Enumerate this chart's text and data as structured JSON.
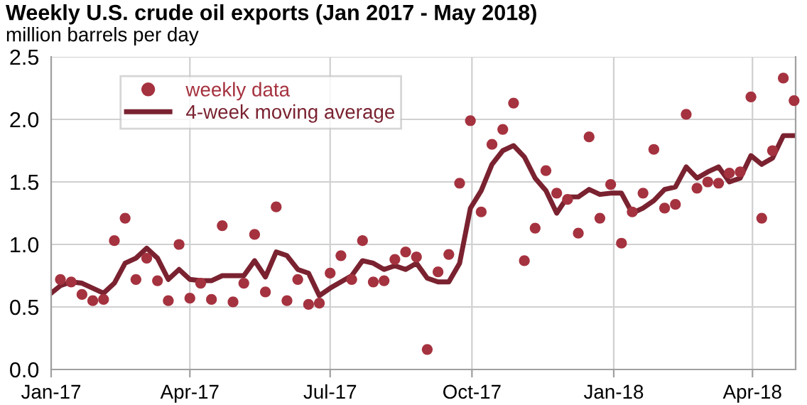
{
  "chart_data": {
    "type": "scatter",
    "title": "Weekly U.S. crude oil exports (Jan 2017 - May 2018)",
    "subtitle": "million barrels per day",
    "series": [
      {
        "name": "weekly data",
        "color": "#a5323f",
        "marker": "circle",
        "x": [
          "2017-01-07",
          "2017-01-14",
          "2017-01-21",
          "2017-01-28",
          "2017-02-04",
          "2017-02-11",
          "2017-02-18",
          "2017-02-25",
          "2017-03-04",
          "2017-03-11",
          "2017-03-18",
          "2017-03-25",
          "2017-04-01",
          "2017-04-08",
          "2017-04-15",
          "2017-04-22",
          "2017-04-29",
          "2017-05-06",
          "2017-05-13",
          "2017-05-20",
          "2017-05-27",
          "2017-06-03",
          "2017-06-10",
          "2017-06-17",
          "2017-06-24",
          "2017-07-01",
          "2017-07-08",
          "2017-07-15",
          "2017-07-22",
          "2017-07-29",
          "2017-08-05",
          "2017-08-12",
          "2017-08-19",
          "2017-08-26",
          "2017-09-02",
          "2017-09-09",
          "2017-09-16",
          "2017-09-23",
          "2017-09-30",
          "2017-10-07",
          "2017-10-14",
          "2017-10-21",
          "2017-10-28",
          "2017-11-04",
          "2017-11-11",
          "2017-11-18",
          "2017-11-25",
          "2017-12-02",
          "2017-12-09",
          "2017-12-16",
          "2017-12-23",
          "2017-12-30",
          "2018-01-06",
          "2018-01-13",
          "2018-01-20",
          "2018-01-27",
          "2018-02-03",
          "2018-02-10",
          "2018-02-17",
          "2018-02-24",
          "2018-03-03",
          "2018-03-10",
          "2018-03-17",
          "2018-03-24",
          "2018-03-31",
          "2018-04-07",
          "2018-04-14",
          "2018-04-21",
          "2018-04-28"
        ],
        "values": [
          0.72,
          0.7,
          0.6,
          0.55,
          0.56,
          1.03,
          1.21,
          0.72,
          0.89,
          0.71,
          0.55,
          1.0,
          0.57,
          0.69,
          0.56,
          1.15,
          0.54,
          0.69,
          1.08,
          0.62,
          1.3,
          0.55,
          0.72,
          0.52,
          0.53,
          0.77,
          0.91,
          0.72,
          1.03,
          0.7,
          0.71,
          0.88,
          0.94,
          0.9,
          0.16,
          0.78,
          0.92,
          1.49,
          1.99,
          1.26,
          1.8,
          1.92,
          2.13,
          0.87,
          1.13,
          1.59,
          1.41,
          1.36,
          1.09,
          1.86,
          1.21,
          1.48,
          1.01,
          1.26,
          1.41,
          1.76,
          1.29,
          1.32,
          2.04,
          1.45,
          1.5,
          1.49,
          1.57,
          1.58,
          2.18,
          1.21,
          1.75,
          2.33,
          2.15
        ]
      },
      {
        "name": "4-week moving average",
        "type": "line",
        "color": "#7a2230",
        "marker": "none",
        "line_style": "solid",
        "x": [
          "2017-01-01",
          "2017-01-07",
          "2017-01-14",
          "2017-01-21",
          "2017-01-28",
          "2017-02-04",
          "2017-02-11",
          "2017-02-18",
          "2017-02-25",
          "2017-03-04",
          "2017-03-11",
          "2017-03-18",
          "2017-03-25",
          "2017-04-01",
          "2017-04-08",
          "2017-04-15",
          "2017-04-22",
          "2017-04-29",
          "2017-05-06",
          "2017-05-13",
          "2017-05-20",
          "2017-05-27",
          "2017-06-03",
          "2017-06-10",
          "2017-06-17",
          "2017-06-24",
          "2017-07-01",
          "2017-07-08",
          "2017-07-15",
          "2017-07-22",
          "2017-07-29",
          "2017-08-05",
          "2017-08-12",
          "2017-08-19",
          "2017-08-26",
          "2017-09-02",
          "2017-09-09",
          "2017-09-16",
          "2017-09-23",
          "2017-09-30",
          "2017-10-07",
          "2017-10-14",
          "2017-10-21",
          "2017-10-28",
          "2017-11-04",
          "2017-11-11",
          "2017-11-18",
          "2017-11-25",
          "2017-12-02",
          "2017-12-09",
          "2017-12-16",
          "2017-12-23",
          "2017-12-30",
          "2018-01-06",
          "2018-01-13",
          "2018-01-20",
          "2018-01-27",
          "2018-02-03",
          "2018-02-10",
          "2018-02-17",
          "2018-02-24",
          "2018-03-03",
          "2018-03-10",
          "2018-03-17",
          "2018-03-24",
          "2018-03-31",
          "2018-04-07",
          "2018-04-14",
          "2018-04-21",
          "2018-04-28"
        ],
        "values": [
          0.61,
          0.67,
          0.7,
          0.69,
          0.65,
          0.61,
          0.69,
          0.85,
          0.89,
          0.97,
          0.89,
          0.72,
          0.8,
          0.72,
          0.71,
          0.71,
          0.75,
          0.75,
          0.75,
          0.87,
          0.74,
          0.94,
          0.91,
          0.8,
          0.77,
          0.59,
          0.65,
          0.7,
          0.75,
          0.87,
          0.85,
          0.8,
          0.83,
          0.8,
          0.85,
          0.73,
          0.7,
          0.7,
          0.85,
          1.29,
          1.43,
          1.64,
          1.75,
          1.79,
          1.7,
          1.53,
          1.43,
          1.25,
          1.38,
          1.38,
          1.44,
          1.4,
          1.41,
          1.41,
          1.25,
          1.29,
          1.35,
          1.44,
          1.46,
          1.62,
          1.53,
          1.58,
          1.62,
          1.5,
          1.53,
          1.71,
          1.64,
          1.69,
          1.87,
          1.87
        ]
      }
    ],
    "xlim": [
      "2017-01-01",
      "2018-04-29"
    ],
    "xticks": [
      {
        "value": "2017-01-01",
        "label": "Jan-17"
      },
      {
        "value": "2017-04-01",
        "label": "Apr-17"
      },
      {
        "value": "2017-07-01",
        "label": "Jul-17"
      },
      {
        "value": "2017-10-01",
        "label": "Oct-17"
      },
      {
        "value": "2018-01-01",
        "label": "Jan-18"
      },
      {
        "value": "2018-04-01",
        "label": "Apr-18"
      }
    ],
    "ylim": [
      0,
      2.5
    ],
    "yticks": [
      {
        "value": 0,
        "label": "0.0"
      },
      {
        "value": 0.5,
        "label": "0.5"
      },
      {
        "value": 1,
        "label": "1.0"
      },
      {
        "value": 1.5,
        "label": "1.5"
      },
      {
        "value": 2,
        "label": "2.0"
      },
      {
        "value": 2.5,
        "label": "2.5"
      }
    ],
    "grid": true,
    "legend": "top left"
  }
}
